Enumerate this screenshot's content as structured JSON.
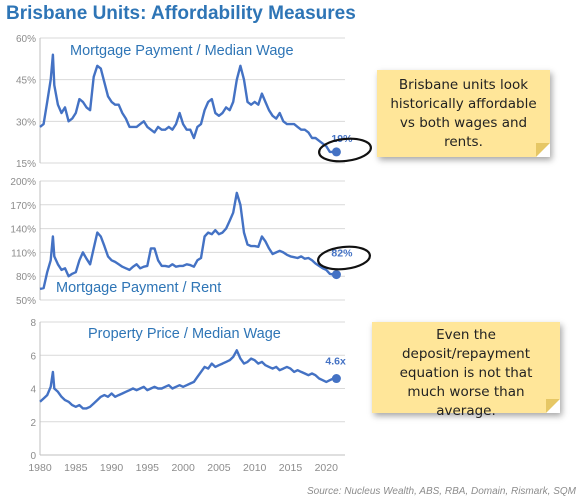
{
  "title": "Brisbane Units: Affordability Measures",
  "source": "Source: Nucleus Wealth, ABS, RBA, Domain, Rismark, SQM",
  "colors": {
    "title": "#2e75b6",
    "line": "#4472c4",
    "note_bg": "#ffe699",
    "grid": "#d9d9d9",
    "axis_text": "#8c8c8c"
  },
  "notes": [
    {
      "text": "Brisbane units look historically affordable vs both wages and rents."
    },
    {
      "text": "Even the deposit/repayment equation is not that much worse than average."
    }
  ],
  "chart_data": [
    {
      "type": "line",
      "title": "Mortgage Payment / Median Wage",
      "ylim": [
        15,
        60
      ],
      "yticks": [
        "15%",
        "30%",
        "45%",
        "60%"
      ],
      "end_label": "19%",
      "grid": true,
      "x": [
        1980,
        1980.5,
        1981,
        1981.5,
        1981.8,
        1982,
        1982.5,
        1983,
        1983.5,
        1984,
        1984.5,
        1985,
        1985.5,
        1986,
        1986.5,
        1987,
        1987.5,
        1988,
        1988.5,
        1989,
        1989.5,
        1990,
        1990.5,
        1991,
        1991.5,
        1992,
        1992.5,
        1993,
        1993.5,
        1994,
        1994.5,
        1995,
        1995.5,
        1996,
        1996.5,
        1997,
        1997.5,
        1998,
        1998.5,
        1999,
        1999.5,
        2000,
        2000.5,
        2001,
        2001.5,
        2002,
        2002.5,
        2003,
        2003.5,
        2004,
        2004.5,
        2005,
        2005.5,
        2006,
        2006.5,
        2007,
        2007.5,
        2008,
        2008.5,
        2009,
        2009.5,
        2010,
        2010.5,
        2011,
        2011.5,
        2012,
        2012.5,
        2013,
        2013.5,
        2014,
        2014.5,
        2015,
        2015.5,
        2016,
        2016.5,
        2017,
        2017.5,
        2018,
        2018.5,
        2019,
        2019.5,
        2020,
        2020.5,
        2021
      ],
      "y": [
        28,
        29,
        37,
        45,
        54,
        43,
        36,
        33,
        35,
        30,
        31,
        33,
        38,
        37,
        35,
        34,
        46,
        50,
        49,
        44,
        39,
        37,
        36,
        36,
        33,
        31,
        28,
        28,
        28,
        29,
        30,
        28,
        27,
        26,
        28,
        27,
        27,
        28,
        27,
        29,
        33,
        29,
        27,
        27,
        24,
        28,
        29,
        34,
        37,
        38,
        33,
        32,
        33,
        35,
        34,
        37,
        45,
        50,
        45,
        37,
        36,
        37,
        36,
        40,
        37,
        34,
        32,
        31,
        33,
        30,
        29,
        29,
        29,
        28,
        27,
        27,
        26,
        24,
        24,
        23,
        22,
        21,
        19,
        19
      ]
    },
    {
      "type": "line",
      "title": "Mortgage Payment / Rent",
      "ylim": [
        50,
        200
      ],
      "yticks": [
        "50%",
        "80%",
        "110%",
        "140%",
        "170%",
        "200%"
      ],
      "end_label": "82%",
      "grid": true,
      "x": [
        1980,
        1980.5,
        1981,
        1981.5,
        1981.8,
        1982,
        1982.5,
        1983,
        1983.5,
        1984,
        1984.5,
        1985,
        1985.5,
        1986,
        1986.5,
        1987,
        1987.5,
        1988,
        1988.5,
        1989,
        1989.5,
        1990,
        1990.5,
        1991,
        1991.5,
        1992,
        1992.5,
        1993,
        1993.5,
        1994,
        1994.5,
        1995,
        1995.5,
        1996,
        1996.5,
        1997,
        1997.5,
        1998,
        1998.5,
        1999,
        1999.5,
        2000,
        2000.5,
        2001,
        2001.5,
        2002,
        2002.5,
        2003,
        2003.5,
        2004,
        2004.5,
        2005,
        2005.5,
        2006,
        2006.5,
        2007,
        2007.5,
        2008,
        2008.5,
        2009,
        2009.5,
        2010,
        2010.5,
        2011,
        2011.5,
        2012,
        2012.5,
        2013,
        2013.5,
        2014,
        2014.5,
        2015,
        2015.5,
        2016,
        2016.5,
        2017,
        2017.5,
        2018,
        2018.5,
        2019,
        2019.5,
        2020,
        2020.5,
        2021
      ],
      "y": [
        64,
        65,
        85,
        100,
        130,
        105,
        95,
        88,
        90,
        80,
        83,
        85,
        100,
        110,
        102,
        95,
        115,
        135,
        130,
        118,
        105,
        100,
        98,
        95,
        92,
        90,
        88,
        92,
        95,
        90,
        92,
        93,
        115,
        115,
        100,
        93,
        93,
        92,
        95,
        92,
        93,
        93,
        95,
        94,
        92,
        100,
        103,
        130,
        135,
        133,
        138,
        133,
        135,
        140,
        150,
        160,
        185,
        170,
        135,
        120,
        118,
        118,
        117,
        130,
        124,
        115,
        108,
        110,
        112,
        110,
        107,
        105,
        104,
        103,
        105,
        102,
        103,
        100,
        96,
        93,
        90,
        88,
        83,
        82
      ]
    },
    {
      "type": "line",
      "title": "Property Price / Median Wage",
      "ylim": [
        0,
        8
      ],
      "yticks": [
        "0",
        "2",
        "4",
        "6",
        "8"
      ],
      "xticks": [
        "1980",
        "1985",
        "1990",
        "1995",
        "2000",
        "2005",
        "2010",
        "2015",
        "2020"
      ],
      "end_label": "4.6x",
      "grid": true,
      "x": [
        1980,
        1980.5,
        1981,
        1981.5,
        1981.8,
        1982,
        1982.5,
        1983,
        1983.5,
        1984,
        1984.5,
        1985,
        1985.5,
        1986,
        1986.5,
        1987,
        1987.5,
        1988,
        1988.5,
        1989,
        1989.5,
        1990,
        1990.5,
        1991,
        1991.5,
        1992,
        1992.5,
        1993,
        1993.5,
        1994,
        1994.5,
        1995,
        1995.5,
        1996,
        1996.5,
        1997,
        1997.5,
        1998,
        1998.5,
        1999,
        1999.5,
        2000,
        2000.5,
        2001,
        2001.5,
        2002,
        2002.5,
        2003,
        2003.5,
        2004,
        2004.5,
        2005,
        2005.5,
        2006,
        2006.5,
        2007,
        2007.5,
        2008,
        2008.5,
        2009,
        2009.5,
        2010,
        2010.5,
        2011,
        2011.5,
        2012,
        2012.5,
        2013,
        2013.5,
        2014,
        2014.5,
        2015,
        2015.5,
        2016,
        2016.5,
        2017,
        2017.5,
        2018,
        2018.5,
        2019,
        2019.5,
        2020,
        2020.5,
        2021
      ],
      "y": [
        3.2,
        3.4,
        3.6,
        4.1,
        5.0,
        4.0,
        3.8,
        3.5,
        3.3,
        3.2,
        3.0,
        2.9,
        3.0,
        2.8,
        2.8,
        2.9,
        3.1,
        3.3,
        3.5,
        3.6,
        3.5,
        3.7,
        3.5,
        3.6,
        3.7,
        3.8,
        3.9,
        4.0,
        3.9,
        4.0,
        4.1,
        3.9,
        4.0,
        4.1,
        4.0,
        4.0,
        4.1,
        4.2,
        4.0,
        4.1,
        4.2,
        4.1,
        4.2,
        4.3,
        4.4,
        4.7,
        5.0,
        5.3,
        5.2,
        5.5,
        5.3,
        5.4,
        5.5,
        5.6,
        5.7,
        5.9,
        6.3,
        5.8,
        5.5,
        5.6,
        5.8,
        5.7,
        5.5,
        5.6,
        5.4,
        5.3,
        5.2,
        5.3,
        5.1,
        5.2,
        5.3,
        5.2,
        5.0,
        5.1,
        5.0,
        4.9,
        4.8,
        4.9,
        4.8,
        4.6,
        4.5,
        4.4,
        4.5,
        4.6
      ]
    }
  ]
}
